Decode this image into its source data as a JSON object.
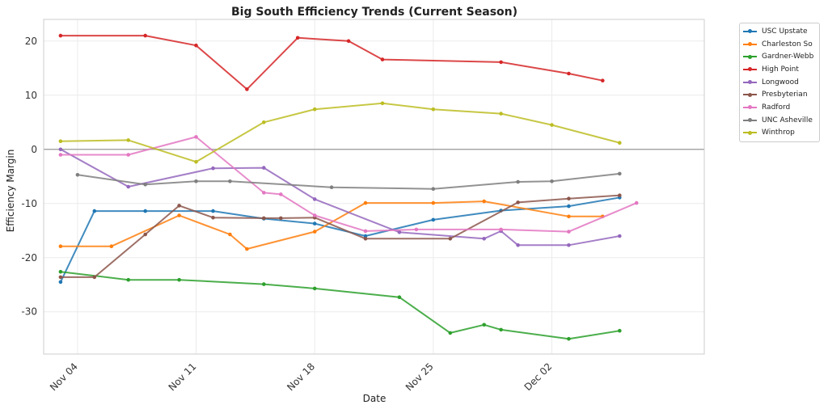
{
  "chart_data": {
    "type": "line",
    "title": "Big South Efficiency Trends (Current Season)",
    "xlabel": "Date",
    "ylabel": "Efficiency Margin",
    "x_ticks": [
      "Nov 04",
      "Nov 11",
      "Nov 18",
      "Nov 25",
      "Dec 02"
    ],
    "x_tick_dates": [
      "2024-11-04",
      "2024-11-11",
      "2024-11-18",
      "2024-11-25",
      "2024-12-02"
    ],
    "xlim": [
      "2024-11-02",
      "2024-12-11"
    ],
    "y_ticks": [
      20,
      10,
      0,
      -10,
      -20,
      -30
    ],
    "ylim": [
      -37.8,
      24
    ],
    "grid": true,
    "zero_line": true,
    "legend_placement": "outside-top-right",
    "series": [
      {
        "name": "USC Upstate",
        "color": "#1f77b4",
        "x": [
          "2024-11-03",
          "2024-11-05",
          "2024-11-08",
          "2024-11-12",
          "2024-11-15",
          "2024-11-18",
          "2024-11-21",
          "2024-11-25",
          "2024-11-29",
          "2024-12-03",
          "2024-12-06"
        ],
        "y": [
          -24.5,
          -11.4,
          -11.4,
          -11.4,
          -12.8,
          -13.7,
          -16,
          -13,
          -11.3,
          -10.5,
          -8.9
        ]
      },
      {
        "name": "Charleston So",
        "color": "#ff7f0e",
        "x": [
          "2024-11-03",
          "2024-11-06",
          "2024-11-10",
          "2024-11-13",
          "2024-11-14",
          "2024-11-18",
          "2024-11-21",
          "2024-11-25",
          "2024-11-28",
          "2024-12-03",
          "2024-12-05"
        ],
        "y": [
          -17.9,
          -17.9,
          -12.2,
          -15.7,
          -18.4,
          -15.2,
          -9.9,
          -9.9,
          -9.6,
          -12.4,
          -12.4
        ]
      },
      {
        "name": "Gardner-Webb",
        "color": "#2ca02c",
        "x": [
          "2024-11-03",
          "2024-11-07",
          "2024-11-10",
          "2024-11-15",
          "2024-11-18",
          "2024-11-23",
          "2024-11-26",
          "2024-11-28",
          "2024-11-29",
          "2024-12-03",
          "2024-12-06"
        ],
        "y": [
          -22.6,
          -24.1,
          -24.1,
          -24.9,
          -25.7,
          -27.3,
          -33.9,
          -32.4,
          -33.3,
          -35,
          -33.5
        ]
      },
      {
        "name": "High Point",
        "color": "#d62728",
        "x": [
          "2024-11-03",
          "2024-11-08",
          "2024-11-11",
          "2024-11-14",
          "2024-11-17",
          "2024-11-20",
          "2024-11-22",
          "2024-11-29",
          "2024-12-03",
          "2024-12-05"
        ],
        "y": [
          21,
          21,
          19.2,
          11.1,
          20.6,
          20,
          16.6,
          16.1,
          14,
          12.7
        ]
      },
      {
        "name": "Longwood",
        "color": "#9467bd",
        "x": [
          "2024-11-03",
          "2024-11-07",
          "2024-11-12",
          "2024-11-15",
          "2024-11-18",
          "2024-11-23",
          "2024-11-28",
          "2024-11-29",
          "2024-11-30",
          "2024-12-03",
          "2024-12-06"
        ],
        "y": [
          0,
          -6.9,
          -3.5,
          -3.4,
          -9.2,
          -15.3,
          -16.5,
          -15.1,
          -17.7,
          -17.7,
          -16
        ]
      },
      {
        "name": "Presbyterian",
        "color": "#8c564b",
        "x": [
          "2024-11-03",
          "2024-11-05",
          "2024-11-08",
          "2024-11-10",
          "2024-11-12",
          "2024-11-15",
          "2024-11-16",
          "2024-11-18",
          "2024-11-21",
          "2024-11-26",
          "2024-11-30",
          "2024-12-03",
          "2024-12-06"
        ],
        "y": [
          -23.6,
          -23.6,
          -15.7,
          -10.4,
          -12.6,
          -12.7,
          -12.7,
          -12.6,
          -16.5,
          -16.5,
          -9.8,
          -9.1,
          -8.5
        ]
      },
      {
        "name": "Radford",
        "color": "#e377c2",
        "x": [
          "2024-11-03",
          "2024-11-07",
          "2024-11-11",
          "2024-11-15",
          "2024-11-16",
          "2024-11-18",
          "2024-11-21",
          "2024-11-24",
          "2024-11-29",
          "2024-12-03",
          "2024-12-07"
        ],
        "y": [
          -1,
          -1,
          2.3,
          -8,
          -8.3,
          -12.2,
          -15.1,
          -14.8,
          -14.8,
          -15.2,
          -9.9
        ]
      },
      {
        "name": "UNC Asheville",
        "color": "#7f7f7f",
        "x": [
          "2024-11-04",
          "2024-11-08",
          "2024-11-11",
          "2024-11-13",
          "2024-11-19",
          "2024-11-25",
          "2024-11-30",
          "2024-12-02",
          "2024-12-06"
        ],
        "y": [
          -4.7,
          -6.5,
          -5.9,
          -5.9,
          -7,
          -7.3,
          -6,
          -5.9,
          -4.5
        ]
      },
      {
        "name": "Winthrop",
        "color": "#bcbd22",
        "x": [
          "2024-11-03",
          "2024-11-07",
          "2024-11-11",
          "2024-11-15",
          "2024-11-18",
          "2024-11-22",
          "2024-11-25",
          "2024-11-29",
          "2024-12-02",
          "2024-12-06"
        ],
        "y": [
          1.5,
          1.7,
          -2.3,
          5,
          7.4,
          8.5,
          7.4,
          6.6,
          4.5,
          1.2
        ]
      }
    ]
  }
}
